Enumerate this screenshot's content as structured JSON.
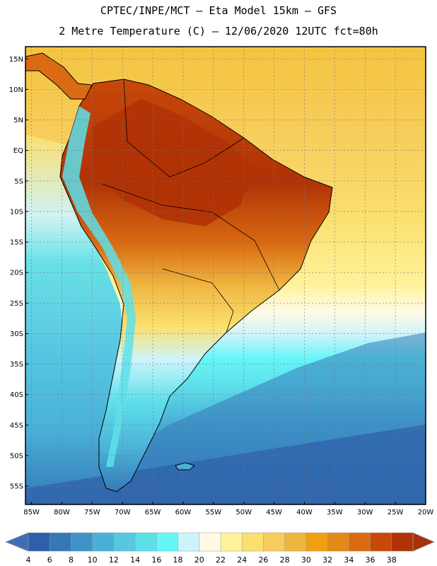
{
  "title": {
    "line1": "CPTEC/INPE/MCT –  Eta Model 15km – GFS",
    "line2": "2 Metre Temperature (C) – 12/06/2020 12UTC fct=80h"
  },
  "map": {
    "lat_labels": [
      "15N",
      "10N",
      "5N",
      "EQ",
      "5S",
      "10S",
      "15S",
      "20S",
      "25S",
      "30S",
      "35S",
      "40S",
      "45S",
      "50S",
      "55S"
    ],
    "lon_labels": [
      "85W",
      "80W",
      "75W",
      "70W",
      "65W",
      "60W",
      "55W",
      "50W",
      "45W",
      "40W",
      "35W",
      "30W",
      "25W",
      "20W"
    ]
  },
  "colorbar": {
    "labels": [
      "4",
      "6",
      "8",
      "10",
      "12",
      "14",
      "16",
      "18",
      "20",
      "22",
      "24",
      "26",
      "28",
      "30",
      "32",
      "34",
      "36",
      "38"
    ],
    "colors": [
      "#2f5fa8",
      "#3478b8",
      "#3f93c8",
      "#4ab0d8",
      "#56c8e2",
      "#5ee0ea",
      "#66f6f8",
      "#cdf4fb",
      "#fffae6",
      "#fff29a",
      "#fbe070",
      "#f6cc5a",
      "#efb640",
      "#f0a012",
      "#e38a1a",
      "#da6b12",
      "#c84808",
      "#b03206"
    ],
    "low_arrow_color": "#3d6fb5",
    "high_arrow_color": "#a8300a"
  },
  "chart_data": {
    "type": "heatmap",
    "title": "2 Metre Temperature (C) – 12/06/2020 12UTC fct=80h",
    "variable": "2 Metre Temperature",
    "units": "C",
    "model": "Eta Model 15km – GFS",
    "source": "CPTEC/INPE/MCT",
    "init_time": "12/06/2020 12UTC",
    "forecast_hour": "fct=80h",
    "lat_range": [
      -58,
      17
    ],
    "lon_range": [
      -86,
      -20
    ],
    "colorbar_levels": [
      4,
      6,
      8,
      10,
      12,
      14,
      16,
      18,
      20,
      22,
      24,
      26,
      28,
      30,
      32,
      34,
      36,
      38
    ]
  }
}
